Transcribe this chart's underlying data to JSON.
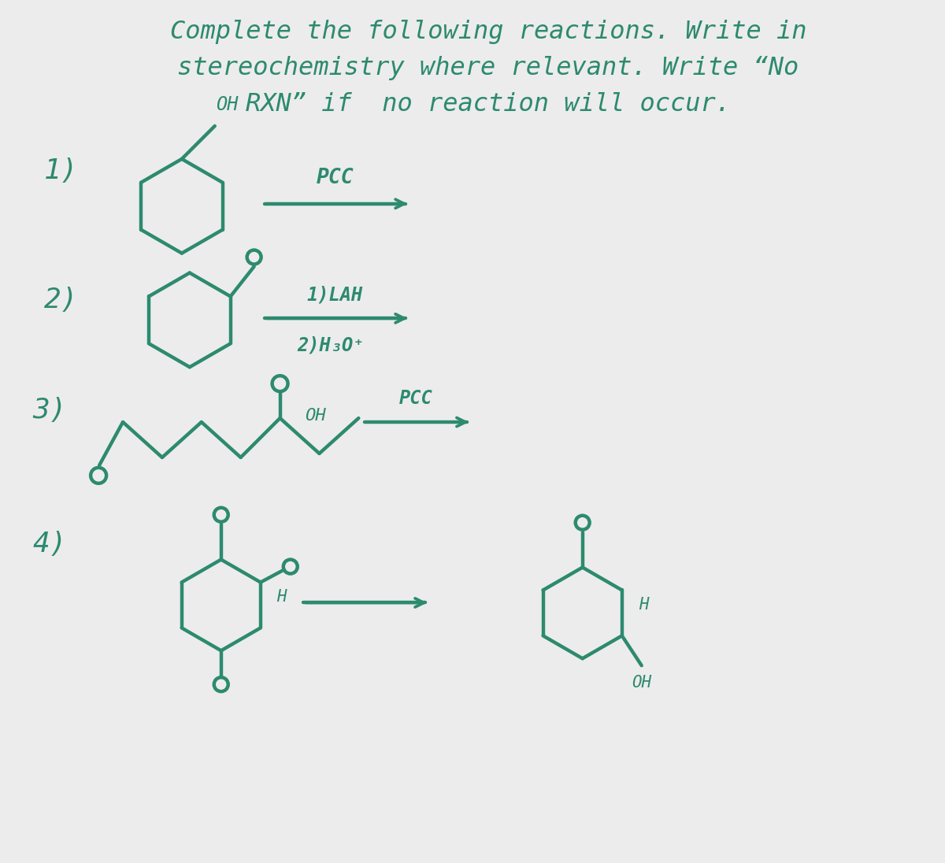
{
  "bg_color": "#ebebeb",
  "paper_color": "#ececec",
  "ink_color": "#2d8a6e",
  "title_lines": [
    "Complete the following reactions. Write in",
    "stereochemistry where relevant. Write “No",
    "RXN” if  no reaction will occur."
  ],
  "title_fontsize": 23,
  "label_fontsize": 26,
  "chem_fontsize": 18,
  "figsize": [
    12.0,
    10.96
  ],
  "dpi": 100
}
